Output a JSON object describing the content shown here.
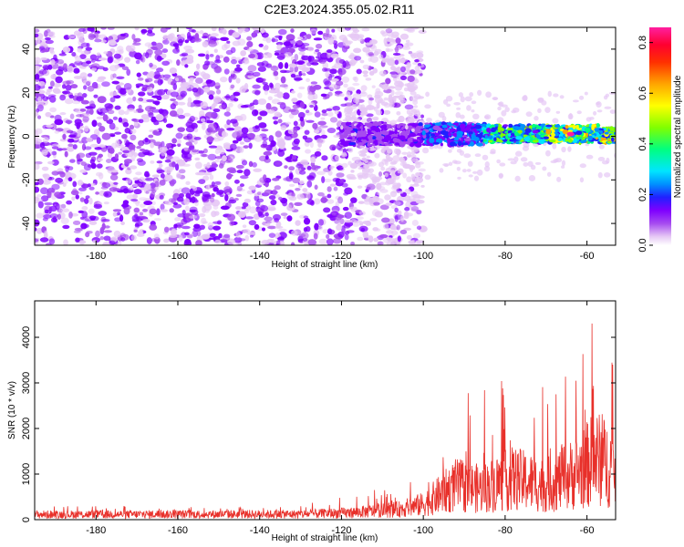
{
  "title": "C2E3.2024.355.05.02.R11",
  "chart_data": [
    {
      "type": "heatmap",
      "xlabel": "Height of straight line (km)",
      "ylabel": "Frequency (Hz)",
      "xlim": [
        -195,
        -53
      ],
      "ylim": [
        -50,
        50
      ],
      "x_ticks": [
        -180,
        -160,
        -140,
        -120,
        -100,
        -80,
        -60
      ],
      "y_ticks": [
        -40,
        -20,
        0,
        20,
        40
      ],
      "colorbar": {
        "label": "Normalized spectral amplitude",
        "range": [
          0.0,
          0.86
        ],
        "ticks": [
          0.0,
          0.2,
          0.4,
          0.6,
          0.8
        ],
        "colors": [
          "#ffffff",
          "#e6c8f5",
          "#a64bf0",
          "#7f00ff",
          "#2020ff",
          "#0090ff",
          "#00e5ff",
          "#00ff80",
          "#80ff00",
          "#ffff00",
          "#ffa500",
          "#ff3000",
          "#ff0030",
          "#ff1fa0"
        ]
      },
      "noise_region": {
        "x_range": [
          -195,
          -100
        ],
        "amplitude_range": [
          0.0,
          0.15
        ]
      },
      "signal_band": {
        "frequency_center": 1,
        "segments": [
          {
            "x_range": [
              -120,
              -100
            ],
            "half_width_hz": 5,
            "amplitude": 0.2
          },
          {
            "x_range": [
              -100,
              -85
            ],
            "half_width_hz": 5,
            "amplitude": 0.3
          },
          {
            "x_range": [
              -85,
              -70
            ],
            "half_width_hz": 4,
            "amplitude": 0.45
          },
          {
            "x_range": [
              -70,
              -53
            ],
            "half_width_hz": 4,
            "amplitude": 0.55
          }
        ],
        "peak": {
          "x": -64,
          "frequency": 1,
          "amplitude": 0.86
        }
      }
    },
    {
      "type": "line",
      "xlabel": "Height of straight line (km)",
      "ylabel": "SNR (10 * v/v)",
      "xlim": [
        -195,
        -53
      ],
      "ylim": [
        0,
        4800
      ],
      "x_ticks": [
        -180,
        -160,
        -140,
        -120,
        -100,
        -80,
        -60
      ],
      "y_ticks": [
        0,
        1000,
        2000,
        3000,
        4000
      ],
      "color": "#e8302a",
      "envelope": [
        {
          "x": -195,
          "mean": 150,
          "max": 300
        },
        {
          "x": -130,
          "mean": 160,
          "max": 300
        },
        {
          "x": -118,
          "mean": 200,
          "max": 650
        },
        {
          "x": -106,
          "mean": 300,
          "max": 650
        },
        {
          "x": -100,
          "mean": 450,
          "max": 1200
        },
        {
          "x": -92,
          "mean": 1000,
          "max": 2900
        },
        {
          "x": -86,
          "mean": 900,
          "max": 2800
        },
        {
          "x": -78,
          "mean": 1200,
          "max": 3500
        },
        {
          "x": -70,
          "mean": 1000,
          "max": 3000
        },
        {
          "x": -62,
          "mean": 1400,
          "max": 3900
        },
        {
          "x": -58,
          "mean": 1800,
          "max": 4750
        },
        {
          "x": -53,
          "mean": 1500,
          "max": 4000
        }
      ]
    }
  ]
}
